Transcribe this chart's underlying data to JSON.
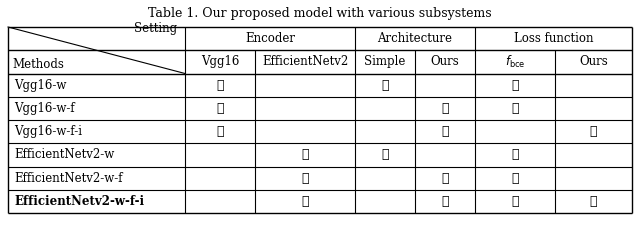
{
  "title": "Table 1. Our proposed model with various subsystems",
  "col_groups": [
    {
      "label": "Encoder",
      "span": [
        1,
        2
      ]
    },
    {
      "label": "Architecture",
      "span": [
        3,
        4
      ]
    },
    {
      "label": "Loss function",
      "span": [
        5,
        6
      ]
    }
  ],
  "header_row1_left": "Setting",
  "header_row1_left2": "Methods",
  "col_headers": [
    "Vgg16",
    "EfficientNetv2",
    "Simple",
    "Ours",
    "f_bce",
    "Ours"
  ],
  "rows": [
    {
      "method": "Vgg16-w",
      "bold": false,
      "checks": [
        1,
        0,
        1,
        0,
        1,
        0
      ]
    },
    {
      "method": "Vgg16-w-f",
      "bold": false,
      "checks": [
        1,
        0,
        0,
        1,
        1,
        0
      ]
    },
    {
      "method": "Vgg16-w-f-i",
      "bold": false,
      "checks": [
        1,
        0,
        0,
        1,
        0,
        1
      ]
    },
    {
      "method": "EfficientNetv2-w",
      "bold": false,
      "checks": [
        0,
        1,
        1,
        0,
        1,
        0
      ]
    },
    {
      "method": "EfficientNetv2-w-f",
      "bold": false,
      "checks": [
        0,
        1,
        0,
        1,
        1,
        0
      ]
    },
    {
      "method": "EfficientNetv2-w-f-i",
      "bold": true,
      "checks": [
        0,
        1,
        0,
        1,
        1,
        1
      ]
    }
  ],
  "check_symbol": "✓",
  "background": "white",
  "text_color": "black"
}
